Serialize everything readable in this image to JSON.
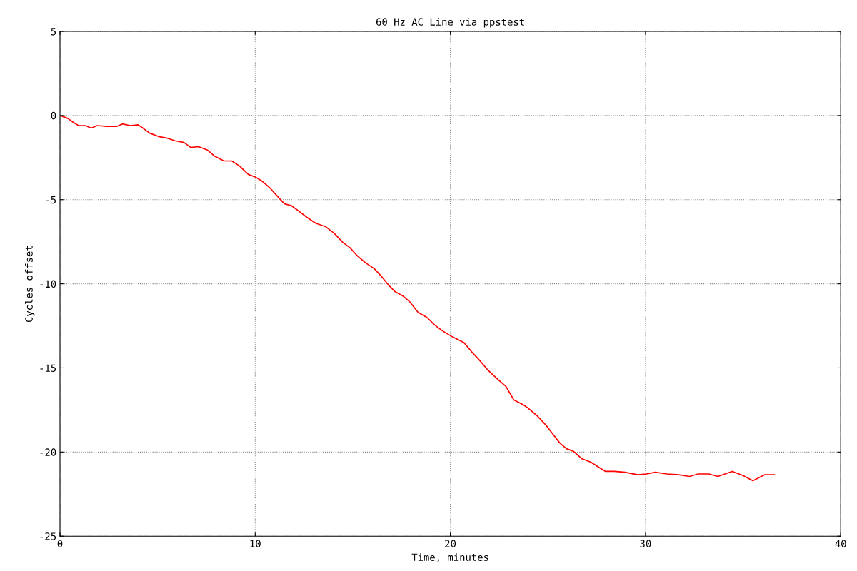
{
  "chart_data": {
    "type": "line",
    "title": "60 Hz AC Line via ppstest",
    "xlabel": "Time, minutes",
    "ylabel": "Cycles offset",
    "xlim": [
      0,
      40
    ],
    "ylim": [
      -25,
      5
    ],
    "xticks": [
      0,
      10,
      20,
      30,
      40
    ],
    "yticks": [
      -25,
      -20,
      -15,
      -10,
      -5,
      0,
      5
    ],
    "grid": true,
    "line_style": "solid",
    "marker": "none",
    "series": [
      {
        "color": "#ff0000",
        "x": [
          0,
          0.4,
          0.7,
          0.95,
          1.3,
          1.6,
          1.9,
          2.4,
          2.9,
          3.2,
          3.6,
          4.0,
          4.25,
          4.6,
          5.05,
          5.5,
          5.9,
          6.35,
          6.7,
          7.1,
          7.55,
          7.9,
          8.4,
          8.8,
          9.2,
          9.65,
          10.0,
          10.35,
          10.75,
          11.1,
          11.5,
          11.85,
          12.2,
          12.65,
          13.1,
          13.6,
          14.05,
          14.5,
          14.85,
          15.2,
          15.65,
          16.1,
          16.5,
          16.85,
          17.15,
          17.6,
          17.9,
          18.35,
          18.8,
          19.2,
          19.6,
          20.1,
          20.7,
          21.1,
          21.5,
          21.9,
          22.45,
          22.85,
          23.25,
          23.75,
          24.0,
          24.45,
          24.9,
          25.2,
          25.6,
          25.95,
          26.3,
          26.75,
          27.2,
          27.6,
          27.95,
          28.4,
          28.95,
          29.6,
          30.05,
          30.5,
          31.1,
          31.7,
          32.25,
          32.7,
          33.25,
          33.7,
          34.45,
          35.0,
          35.5,
          36.1,
          36.6
        ],
        "values": [
          0,
          -0.17,
          -0.42,
          -0.6,
          -0.6,
          -0.75,
          -0.6,
          -0.65,
          -0.65,
          -0.5,
          -0.6,
          -0.55,
          -0.75,
          -1.05,
          -1.25,
          -1.35,
          -1.5,
          -1.6,
          -1.9,
          -1.85,
          -2.05,
          -2.4,
          -2.7,
          -2.7,
          -3.0,
          -3.5,
          -3.65,
          -3.9,
          -4.3,
          -4.75,
          -5.25,
          -5.35,
          -5.65,
          -6.05,
          -6.4,
          -6.6,
          -7.0,
          -7.55,
          -7.85,
          -8.3,
          -8.75,
          -9.1,
          -9.6,
          -10.1,
          -10.45,
          -10.75,
          -11.05,
          -11.7,
          -12.0,
          -12.45,
          -12.8,
          -13.15,
          -13.5,
          -14.05,
          -14.55,
          -15.1,
          -15.7,
          -16.1,
          -16.9,
          -17.2,
          -17.4,
          -17.85,
          -18.4,
          -18.85,
          -19.45,
          -19.8,
          -19.95,
          -20.4,
          -20.6,
          -20.9,
          -21.15,
          -21.15,
          -21.2,
          -21.35,
          -21.3,
          -21.2,
          -21.3,
          -21.35,
          -21.45,
          -21.3,
          -21.3,
          -21.45,
          -21.15,
          -21.4,
          -21.7,
          -21.35,
          -21.35
        ]
      }
    ]
  }
}
